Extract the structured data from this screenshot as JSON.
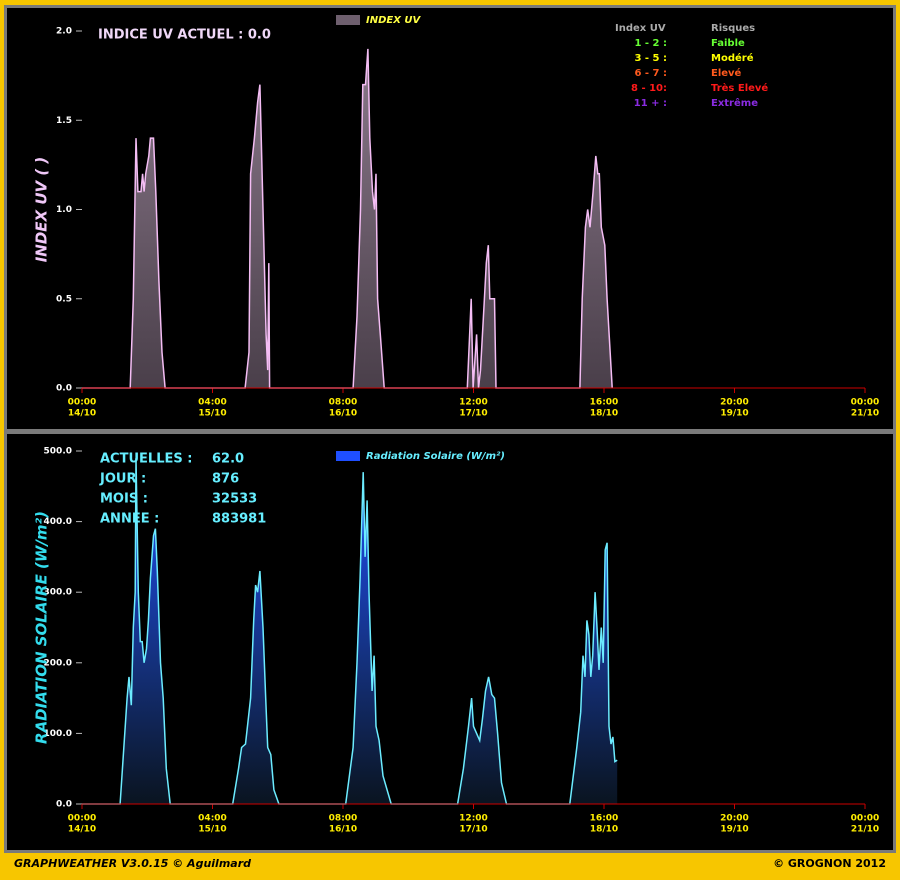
{
  "chart_data": [
    {
      "type": "area",
      "ylabel": "INDEX UV ( )",
      "annotation": "INDICE UV ACTUEL : 0.0",
      "risk_table": {
        "headers": [
          "Index UV",
          "Risques"
        ],
        "rows": [
          {
            "range": "1 - 2  :",
            "risk": "Faible",
            "color": "#66ff33"
          },
          {
            "range": "3 - 5  :",
            "risk": "Modéré",
            "color": "#ffff00"
          },
          {
            "range": "6 - 7  :",
            "risk": "Elevé",
            "color": "#ff5a1e"
          },
          {
            "range": "8 - 10:",
            "risk": "Très Elevé",
            "color": "#ff1a1a"
          },
          {
            "range": "11 +  :",
            "risk": "Extrême",
            "color": "#8a2be2"
          }
        ]
      },
      "xlim": [
        "14/10 00:00",
        "21/10 00:00"
      ],
      "xticks": [
        {
          "value": "14/10 00:00",
          "label": [
            "00:00",
            "14/10"
          ]
        },
        {
          "value": "15/10 04:00",
          "label": [
            "04:00",
            "15/10"
          ]
        },
        {
          "value": "16/10 08:00",
          "label": [
            "08:00",
            "16/10"
          ]
        },
        {
          "value": "17/10 12:00",
          "label": [
            "12:00",
            "17/10"
          ]
        },
        {
          "value": "18/10 16:00",
          "label": [
            "16:00",
            "18/10"
          ]
        },
        {
          "value": "19/10 20:00",
          "label": [
            "20:00",
            "19/10"
          ]
        },
        {
          "value": "21/10 00:00",
          "label": [
            "00:00",
            "21/10"
          ]
        }
      ],
      "ylim": [
        0,
        2
      ],
      "yticks": [
        {
          "value": 0,
          "label": "0.0"
        },
        {
          "value": 0.5,
          "label": "0.5"
        },
        {
          "value": 1,
          "label": "1.0"
        },
        {
          "value": 1.5,
          "label": "1.5"
        },
        {
          "value": 2,
          "label": "2.0"
        }
      ],
      "x": [
        "14/10 00:00",
        "14/10 10:20",
        "14/10 11:00",
        "14/10 11:35",
        "14/10 12:00",
        "14/10 12:40",
        "14/10 13:00",
        "14/10 13:20",
        "14/10 13:40",
        "14/10 14:20",
        "14/10 14:40",
        "14/10 15:20",
        "14/10 15:50",
        "14/10 16:30",
        "14/10 17:10",
        "14/10 17:50",
        "15/10 11:00",
        "15/10 11:50",
        "15/10 12:10",
        "15/10 13:00",
        "15/10 13:40",
        "15/10 14:10",
        "15/10 14:50",
        "15/10 15:30",
        "15/10 15:50",
        "15/10 16:05",
        "15/10 16:15",
        "16/10 10:10",
        "16/10 11:00",
        "16/10 11:45",
        "16/10 12:15",
        "16/10 12:50",
        "16/10 13:20",
        "16/10 13:45",
        "16/10 14:20",
        "16/10 14:45",
        "16/10 15:05",
        "16/10 15:25",
        "16/10 16:00",
        "16/10 16:50",
        "17/10 10:40",
        "17/10 11:30",
        "17/10 11:55",
        "17/10 12:40",
        "17/10 13:05",
        "17/10 13:30",
        "17/10 14:20",
        "17/10 14:45",
        "17/10 15:10",
        "17/10 15:30",
        "17/10 16:30",
        "17/10 16:50",
        "18/10 10:50",
        "18/10 11:20",
        "18/10 12:00",
        "18/10 12:30",
        "18/10 13:00",
        "18/10 13:40",
        "18/10 14:15",
        "18/10 14:40",
        "18/10 15:00",
        "18/10 15:25",
        "18/10 16:10",
        "18/10 16:40",
        "18/10 17:45"
      ],
      "series": [
        {
          "name": "INDEX UV",
          "color": "#f4bdf4",
          "fill": "#6e5f6e",
          "values": [
            0,
            0,
            0.5,
            1.4,
            1.1,
            1.1,
            1.2,
            1.1,
            1.2,
            1.3,
            1.4,
            1.4,
            1.1,
            0.6,
            0.2,
            0,
            0,
            0.2,
            1.2,
            1.4,
            1.6,
            1.7,
            1.0,
            0.3,
            0.1,
            0.7,
            0,
            0,
            0.4,
            1.0,
            1.7,
            1.7,
            1.9,
            1.4,
            1.1,
            1.0,
            1.2,
            0.5,
            0.3,
            0,
            0,
            0.5,
            0,
            0.3,
            0,
            0.1,
            0.5,
            0.7,
            0.8,
            0.5,
            0.5,
            0,
            0,
            0.5,
            0.9,
            1.0,
            0.9,
            1.1,
            1.3,
            1.2,
            1.2,
            0.9,
            0.8,
            0.5,
            0
          ]
        }
      ]
    },
    {
      "type": "area",
      "ylabel": "RADIATION SOLAIRE (W/m²)",
      "stats": [
        {
          "label": "ACTUELLES :",
          "value": "62.0"
        },
        {
          "label": "JOUR :",
          "value": "876"
        },
        {
          "label": "MOIS :",
          "value": "32533"
        },
        {
          "label": "ANNEE :",
          "value": "883981"
        }
      ],
      "xlim": [
        "14/10 00:00",
        "21/10 00:00"
      ],
      "xticks": [
        {
          "value": "14/10 00:00",
          "label": [
            "00:00",
            "14/10"
          ]
        },
        {
          "value": "15/10 04:00",
          "label": [
            "04:00",
            "15/10"
          ]
        },
        {
          "value": "16/10 08:00",
          "label": [
            "08:00",
            "16/10"
          ]
        },
        {
          "value": "17/10 12:00",
          "label": [
            "12:00",
            "17/10"
          ]
        },
        {
          "value": "18/10 16:00",
          "label": [
            "16:00",
            "18/10"
          ]
        },
        {
          "value": "19/10 20:00",
          "label": [
            "20:00",
            "19/10"
          ]
        },
        {
          "value": "21/10 00:00",
          "label": [
            "00:00",
            "21/10"
          ]
        }
      ],
      "ylim": [
        0,
        500
      ],
      "yticks": [
        {
          "value": 0,
          "label": "0.0"
        },
        {
          "value": 100,
          "label": "100.0"
        },
        {
          "value": 200,
          "label": "200.0"
        },
        {
          "value": 300,
          "label": "300.0"
        },
        {
          "value": 400,
          "label": "400.0"
        },
        {
          "value": 500,
          "label": "500.0"
        }
      ],
      "x": [
        "14/10 00:00",
        "14/10 08:10",
        "14/10 09:40",
        "14/10 10:05",
        "14/10 10:35",
        "14/10 11:00",
        "14/10 11:25",
        "14/10 11:35",
        "14/10 12:05",
        "14/10 12:30",
        "14/10 12:55",
        "14/10 13:20",
        "14/10 13:50",
        "14/10 14:15",
        "14/10 14:40",
        "14/10 15:20",
        "14/10 15:45",
        "14/10 16:10",
        "14/10 16:50",
        "14/10 17:25",
        "14/10 18:05",
        "14/10 18:55",
        "15/10 08:20",
        "15/10 09:35",
        "15/10 10:15",
        "15/10 11:05",
        "15/10 12:10",
        "15/10 12:50",
        "15/10 13:15",
        "15/10 13:40",
        "15/10 14:10",
        "15/10 14:50",
        "15/10 15:25",
        "15/10 15:50",
        "15/10 16:30",
        "15/10 17:10",
        "15/10 18:15",
        "16/10 08:35",
        "16/10 10:10",
        "16/10 11:00",
        "16/10 11:40",
        "16/10 12:20",
        "16/10 12:45",
        "16/10 13:10",
        "16/10 13:35",
        "16/10 14:15",
        "16/10 14:40",
        "16/10 15:05",
        "16/10 15:45",
        "16/10 16:35",
        "16/10 18:20",
        "17/10 08:35",
        "17/10 09:50",
        "17/10 10:55",
        "17/10 11:35",
        "17/10 12:00",
        "17/10 12:40",
        "17/10 13:20",
        "17/10 13:55",
        "17/10 14:35",
        "17/10 15:15",
        "17/10 15:55",
        "17/10 16:30",
        "17/10 17:10",
        "17/10 18:00",
        "17/10 19:05",
        "18/10 08:40",
        "18/10 10:10",
        "18/10 11:00",
        "18/10 11:30",
        "18/10 11:55",
        "18/10 12:20",
        "18/10 12:45",
        "18/10 13:10",
        "18/10 13:35",
        "18/10 14:05",
        "18/10 14:30",
        "18/10 14:55",
        "18/10 15:25",
        "18/10 15:50",
        "18/10 16:15",
        "18/10 16:40",
        "18/10 17:05",
        "18/10 17:30",
        "18/10 17:55",
        "18/10 18:20",
        "18/10 18:50"
      ],
      "series": [
        {
          "name": "Radiation Solaire (W/m²)",
          "color": "#6cecff",
          "fill": "#1f4fff",
          "values": [
            0,
            0,
            150,
            180,
            140,
            250,
            300,
            490,
            300,
            230,
            230,
            200,
            220,
            260,
            320,
            380,
            390,
            330,
            200,
            150,
            50,
            0,
            0,
            50,
            80,
            85,
            150,
            260,
            310,
            300,
            330,
            250,
            150,
            80,
            70,
            20,
            0,
            0,
            80,
            200,
            320,
            470,
            350,
            430,
            300,
            160,
            210,
            110,
            90,
            40,
            0,
            0,
            50,
            110,
            150,
            110,
            100,
            90,
            120,
            160,
            180,
            155,
            150,
            100,
            30,
            0,
            0,
            80,
            130,
            210,
            180,
            260,
            240,
            180,
            210,
            300,
            250,
            190,
            250,
            200,
            360,
            370,
            110,
            85,
            95,
            60,
            62
          ]
        }
      ]
    }
  ],
  "footer": {
    "left": "GRAPHWEATHER V3.0.15 © Aguilmard",
    "right": "© GROGNON 2012"
  }
}
